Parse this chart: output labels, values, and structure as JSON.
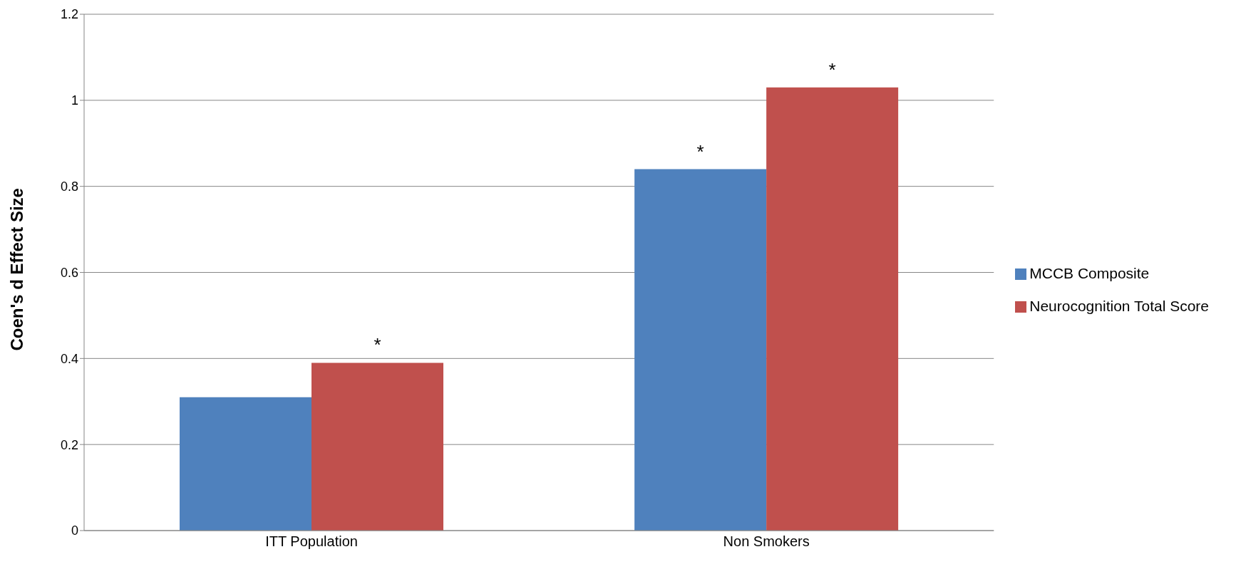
{
  "chart_data": {
    "type": "bar",
    "ylabel": "Coen's d Effect Size",
    "categories": [
      "ITT Population",
      "Non Smokers"
    ],
    "series": [
      {
        "name": "MCCB Composite",
        "color": "#4f81bd",
        "values": [
          0.31,
          0.84
        ],
        "value_labels": [
          null,
          "*"
        ]
      },
      {
        "name": "Neurocognition Total Score",
        "color": "#c0504d",
        "values": [
          0.39,
          1.03
        ],
        "value_labels": [
          "*",
          "*"
        ]
      }
    ],
    "ylim": [
      0,
      1.2
    ],
    "yticks": [
      0,
      0.2,
      0.4,
      0.6,
      0.8,
      1,
      1.2
    ],
    "grid": "y",
    "legend": "right"
  }
}
